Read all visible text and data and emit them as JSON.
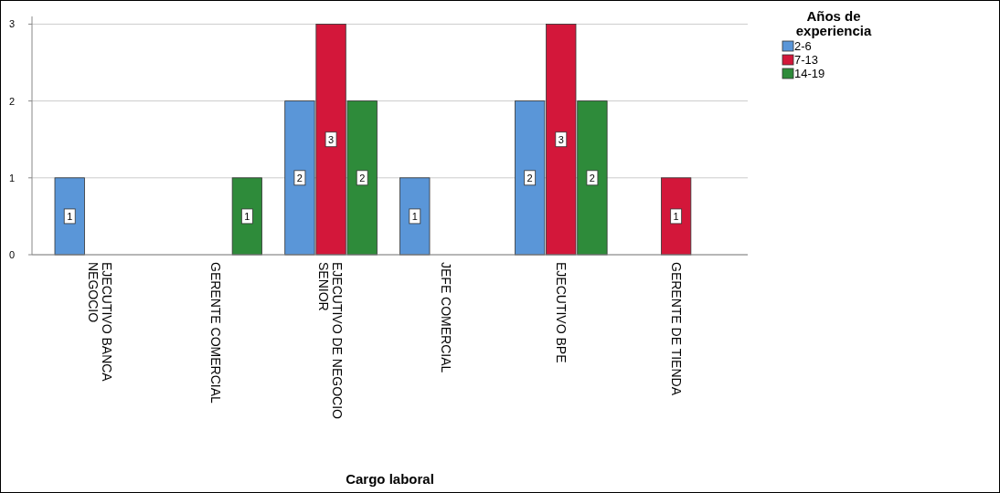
{
  "chart_data": {
    "type": "bar",
    "xlabel": "Cargo laboral",
    "legend_title": "Años de experiencia",
    "categories": [
      "EJECUTIVO BANCA NEGOCIO",
      "GERENTE COMERCIAL",
      "EJECUTIVO DE NEGOCIO SENIOR",
      "JEFE COMERCIAL",
      "EJECUTIVO BPE",
      "GERENTE DE TIENDA"
    ],
    "series": [
      {
        "name": "2-6",
        "color": "#5a96d8",
        "values": [
          1,
          null,
          2,
          1,
          2,
          null
        ]
      },
      {
        "name": "7-13",
        "color": "#d3173a",
        "values": [
          null,
          null,
          3,
          null,
          3,
          1
        ]
      },
      {
        "name": "14-19",
        "color": "#2e8b3a",
        "values": [
          null,
          1,
          2,
          null,
          2,
          null
        ]
      }
    ],
    "ylim": [
      0,
      3.1
    ],
    "yticks": [
      0,
      1,
      2,
      3
    ],
    "grid": "y",
    "legend": "top right",
    "data_labels": true
  }
}
